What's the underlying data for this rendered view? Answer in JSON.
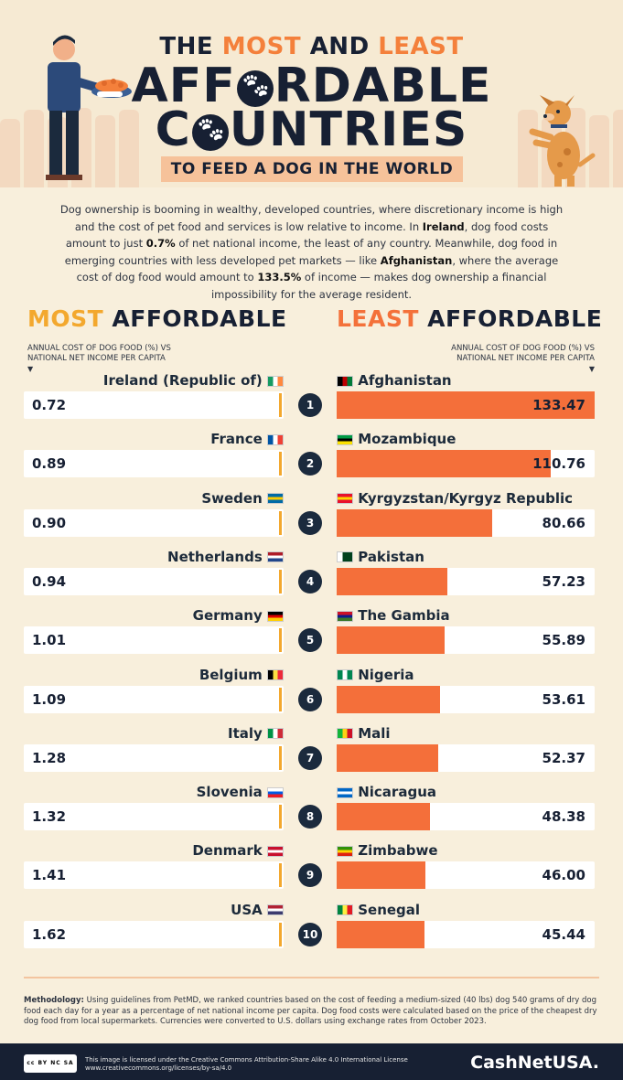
{
  "title": {
    "line1_prefix": "THE",
    "line1_most": "MOST",
    "line1_and": "AND",
    "line1_least": "LEAST",
    "line2_pre": "AFF",
    "line2_post": "RDABLE",
    "line3_pre": "C",
    "line3_post": "UNTRIES",
    "subtitle": "TO FEED A DOG IN THE WORLD"
  },
  "intro": {
    "p1": "Dog ownership is booming in wealthy, developed countries, where discretionary income is high and the cost of pet food and services is low relative to income. In",
    "ireland": "Ireland",
    "p2": ", dog food costs amount to just",
    "ireland_pct": "0.7%",
    "p3": "of net national income, the least of any country. Meanwhile, dog food in emerging countries with less developed pet markets — like",
    "afghanistan": "Afghanistan",
    "p4": ", where the average cost of dog food would amount to",
    "afghanistan_pct": "133.5%",
    "p5": "of income — makes dog ownership a financial impossibility for the average resident."
  },
  "chart_data": {
    "type": "bar",
    "most_affordable": {
      "heading_accent": "MOST",
      "heading_rest": "AFFORDABLE",
      "axis_label": "ANNUAL COST OF DOG FOOD (%) VS NATIONAL NET INCOME PER CAPITA",
      "categories": [
        "Ireland (Republic of)",
        "France",
        "Sweden",
        "Netherlands",
        "Germany",
        "Belgium",
        "Italy",
        "Slovenia",
        "Denmark",
        "USA"
      ],
      "labels": [
        "0.72",
        "0.89",
        "0.90",
        "0.94",
        "1.01",
        "1.09",
        "1.28",
        "1.32",
        "1.41",
        "1.62"
      ],
      "values": [
        0.72,
        0.89,
        0.9,
        0.94,
        1.01,
        1.09,
        1.28,
        1.32,
        1.41,
        1.62
      ]
    },
    "least_affordable": {
      "heading_accent": "LEAST",
      "heading_rest": "AFFORDABLE",
      "axis_label": "ANNUAL COST OF DOG FOOD (%) VS NATIONAL NET INCOME PER CAPITA",
      "categories": [
        "Afghanistan",
        "Mozambique",
        "Kyrgyzstan/Kyrgyz Republic",
        "Pakistan",
        "The Gambia",
        "Nigeria",
        "Mali",
        "Nicaragua",
        "Zimbabwe",
        "Senegal"
      ],
      "labels": [
        "133.47",
        "110.76",
        "80.66",
        "57.23",
        "55.89",
        "53.61",
        "52.37",
        "48.38",
        "46.00",
        "45.44"
      ],
      "values": [
        133.47,
        110.76,
        80.66,
        57.23,
        55.89,
        53.61,
        52.37,
        48.38,
        46.0,
        45.44
      ],
      "xlim": [
        0,
        133.47
      ]
    },
    "ranks": [
      "1",
      "2",
      "3",
      "4",
      "5",
      "6",
      "7",
      "8",
      "9",
      "10"
    ],
    "colors": {
      "least_bar": "#f46f3a",
      "most_edge": "#f3a82e",
      "bar_bg": "#ffffff"
    }
  },
  "methodology": {
    "label": "Methodology:",
    "text": "Using guidelines from PetMD, we ranked countries based on the cost of feeding a medium-sized (40 lbs) dog 540 grams of dry dog food each day for a year as a percentage of net national income per capita. Dog food costs were calculated based on the price of the cheapest dry dog food from local supermarkets. Currencies were converted to U.S. dollars using exchange rates from October 2023."
  },
  "footer": {
    "license_line1": "This image is licensed under the Creative Commons Attribution-Share Alike 4.0 International License",
    "license_line2": "www.creativecommons.org/licenses/by-sa/4.0",
    "cc_badge": "cc BY NC SA",
    "brand": "CashNetUSA."
  }
}
